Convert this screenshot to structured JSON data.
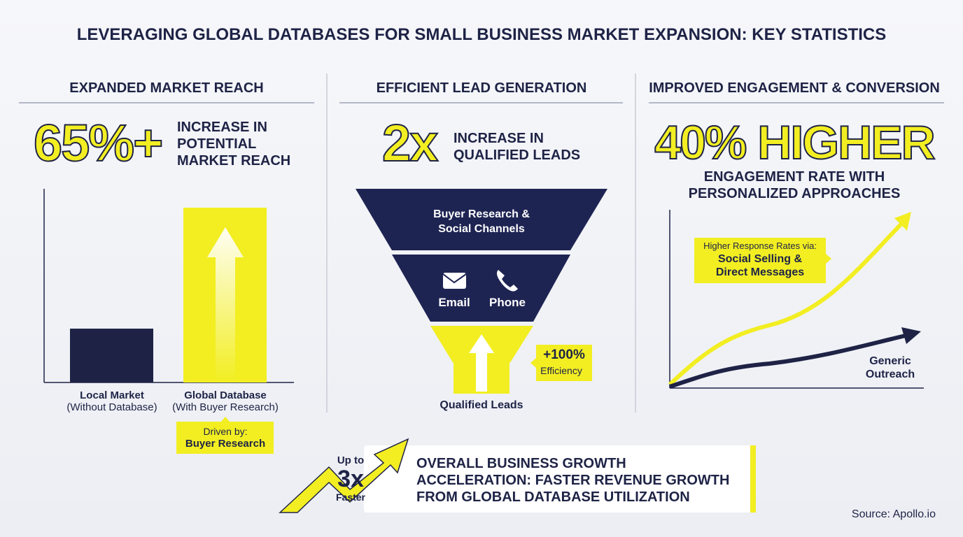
{
  "title": "LEVERAGING GLOBAL DATABASES FOR SMALL BUSINESS MARKET EXPANSION: KEY STATISTICS",
  "panels": [
    {
      "heading": "EXPANDED MARKET REACH",
      "stat": "65%+",
      "stat_text": "INCREASE IN POTENTIAL MARKET REACH",
      "bars": [
        {
          "label": "Local Market",
          "sublabel": "(Without Database)"
        },
        {
          "label": "Global Database",
          "sublabel": "(With Buyer Research)"
        }
      ],
      "callout": {
        "line1": "Driven by:",
        "line2": "Buyer Research"
      }
    },
    {
      "heading": "EFFICIENT LEAD GENERATION",
      "stat": "2x",
      "stat_text": "INCREASE IN QUALIFIED LEADS",
      "funnel": {
        "top": "Buyer Research & Social Channels",
        "email": "Email",
        "phone": "Phone",
        "bottom": "Qualified Leads"
      },
      "badge": {
        "value": "+100%",
        "label": "Efficiency"
      }
    },
    {
      "heading": "IMPROVED ENGAGEMENT & CONVERSION",
      "stat": "40% HIGHER",
      "stat_text": "ENGAGEMENT RATE WITH PERSONALIZED APPROACHES",
      "callout": {
        "line1": "Higher Response Rates via:",
        "line2": "Social Selling & Direct Messages"
      },
      "line_label": "Generic Outreach"
    }
  ],
  "footer": {
    "prefix": "Up to",
    "multiplier": "3x",
    "suffix": "Faster",
    "text": "OVERALL BUSINESS GROWTH ACCELERATION: FASTER REVENUE GROWTH FROM GLOBAL DATABASE UTILIZATION"
  },
  "source": "Source: Apollo.io"
}
